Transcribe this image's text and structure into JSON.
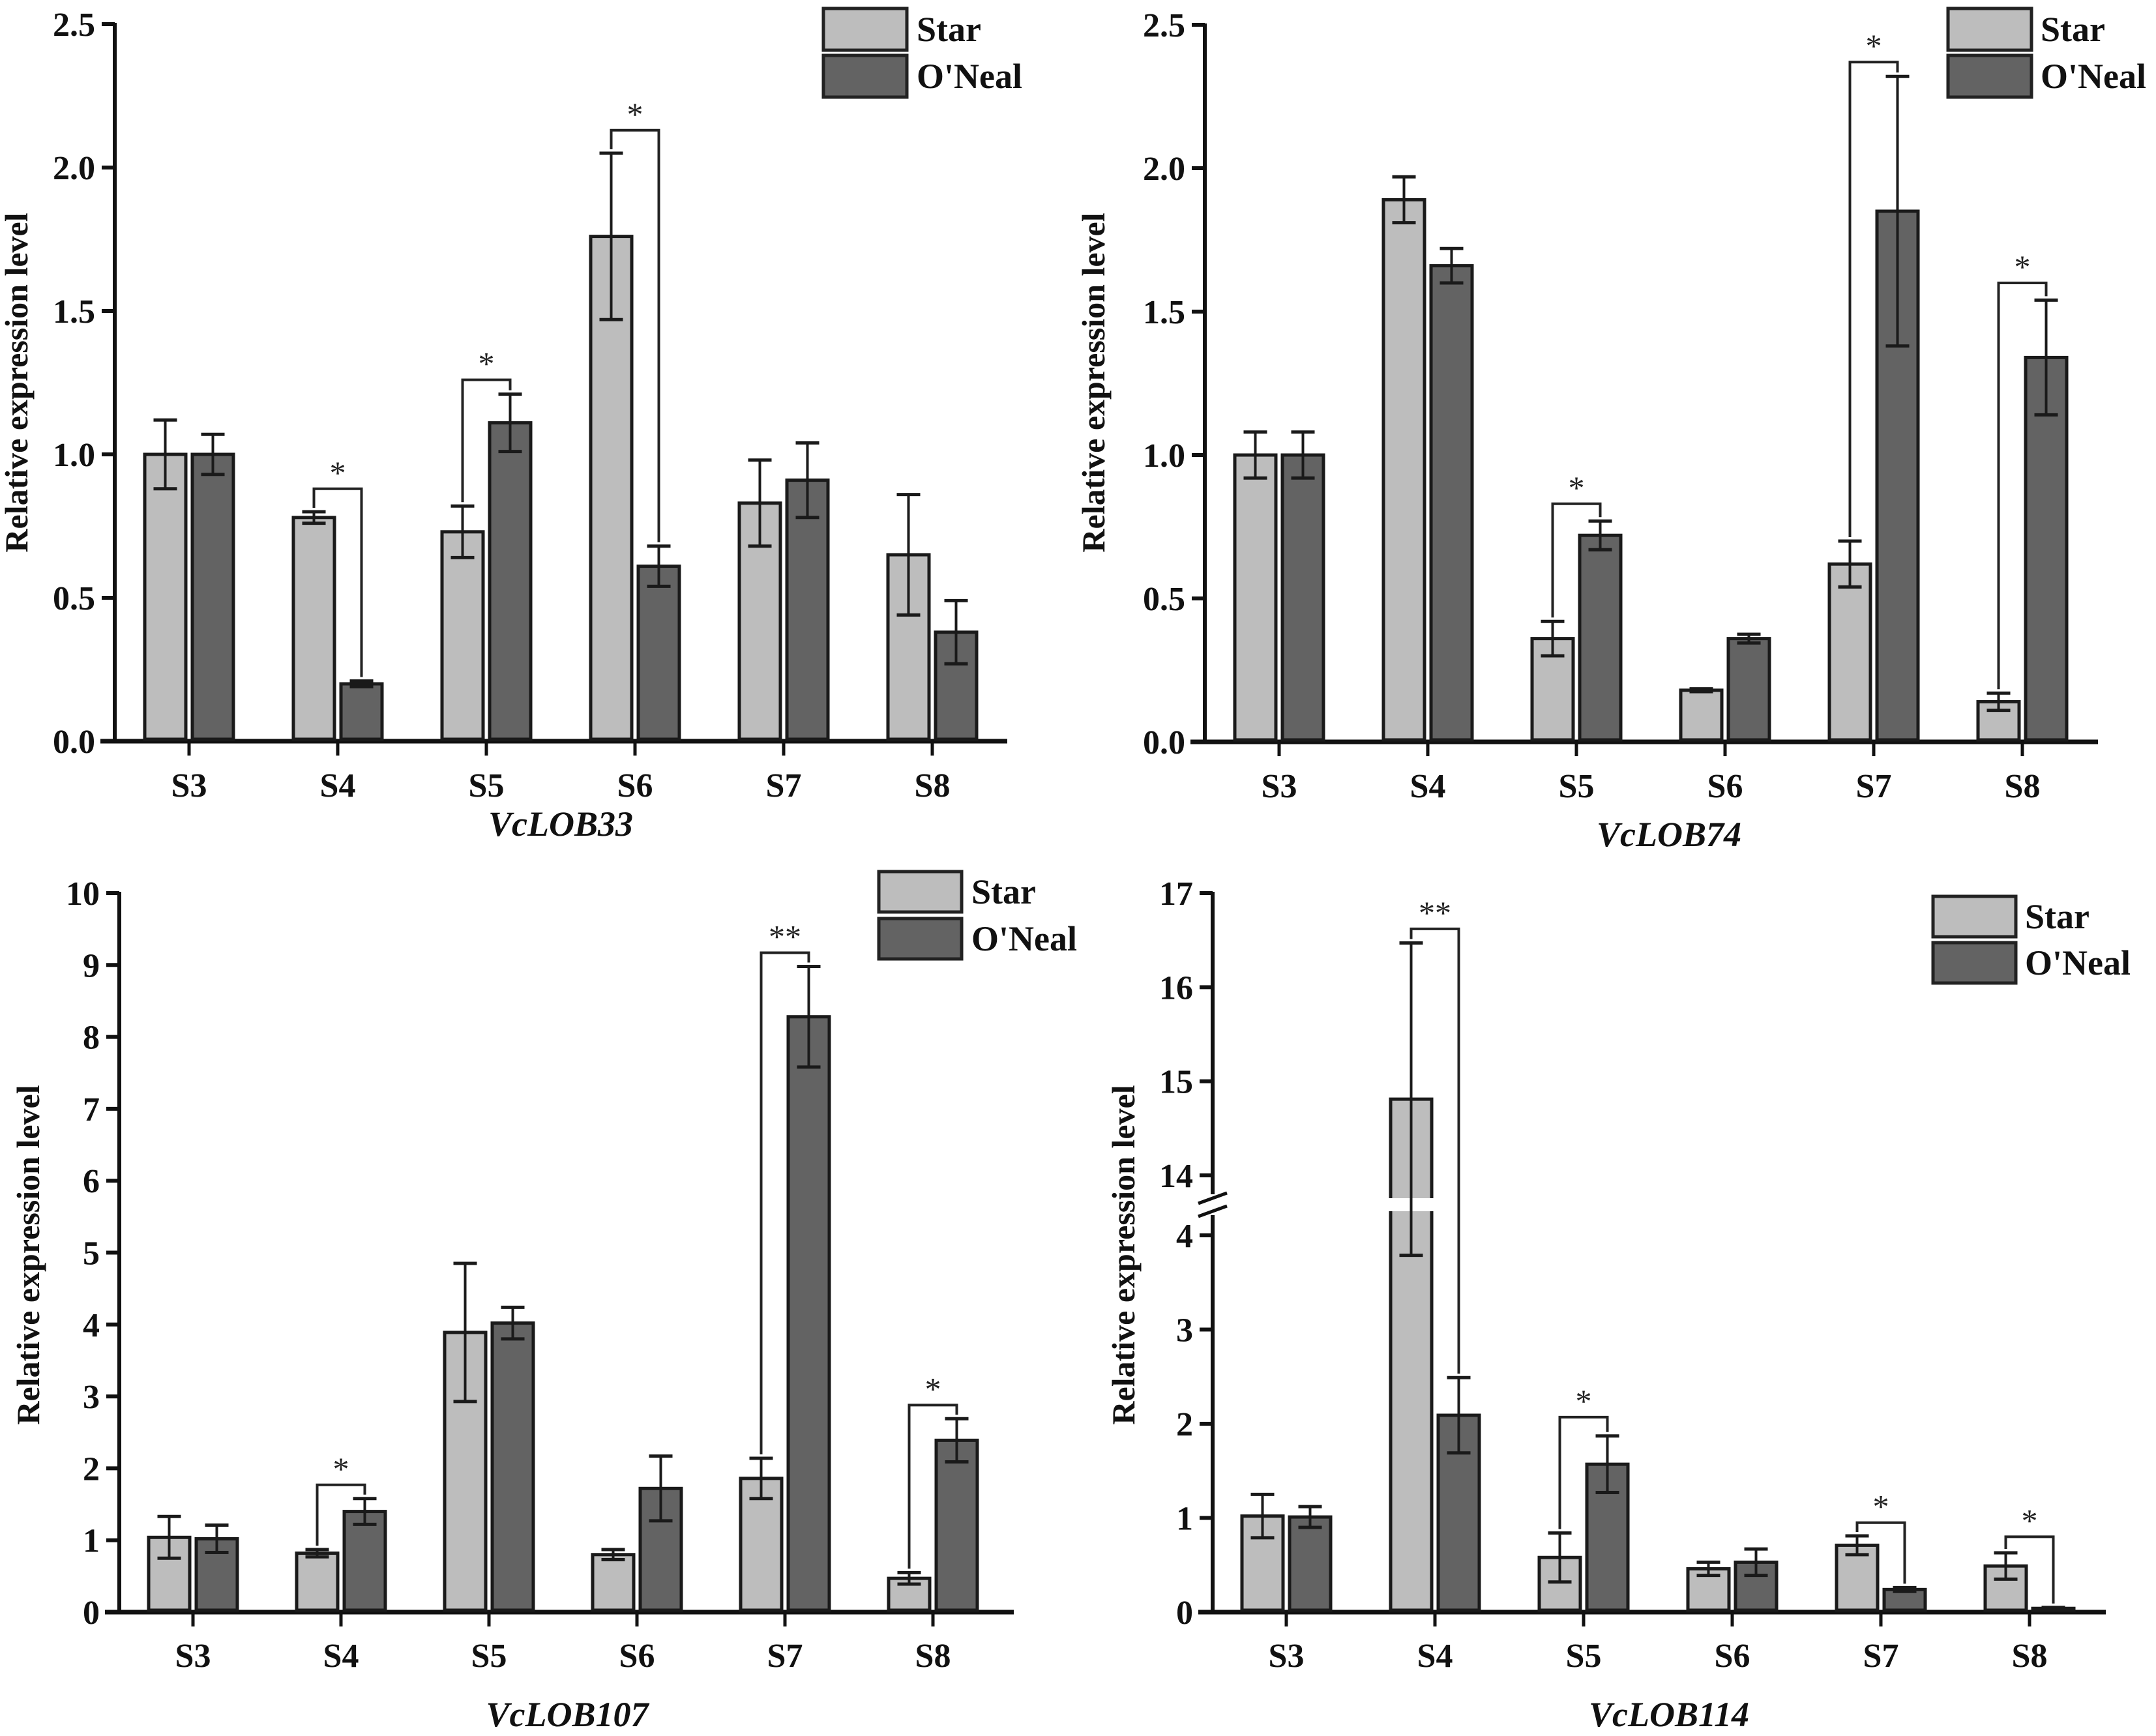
{
  "figure": {
    "legend_labels": [
      "Star",
      "O'Neal"
    ],
    "colors": {
      "Star": "#bdbdbd",
      "O'Neal": "#636363",
      "axis": "#111111"
    }
  },
  "chart_data": [
    {
      "type": "bar",
      "title": "VcLOB33",
      "xlabel": "VcLOB33",
      "ylabel": "Relative expression level",
      "categories": [
        "S3",
        "S4",
        "S5",
        "S6",
        "S7",
        "S8"
      ],
      "ylim": [
        0,
        2.5
      ],
      "yticks": [
        0.0,
        0.5,
        1.0,
        1.5,
        2.0,
        2.5
      ],
      "ytick_labels": [
        "0.0",
        "0.5",
        "1.0",
        "1.5",
        "2.0",
        "2.5"
      ],
      "legend": "top-right",
      "grid": false,
      "series": [
        {
          "name": "Star",
          "values": [
            1.0,
            0.78,
            0.73,
            1.76,
            0.83,
            0.65
          ],
          "errors": [
            0.12,
            0.02,
            0.09,
            0.29,
            0.15,
            0.21
          ]
        },
        {
          "name": "O'Neal",
          "values": [
            1.0,
            0.2,
            1.11,
            0.61,
            0.91,
            0.38
          ],
          "errors": [
            0.07,
            0.01,
            0.1,
            0.07,
            0.13,
            0.11
          ]
        }
      ],
      "significance": [
        {
          "category": "S4",
          "label": "*",
          "bracket_y": 0.88
        },
        {
          "category": "S5",
          "label": "*",
          "bracket_y": 1.26
        },
        {
          "category": "S6",
          "label": "*",
          "bracket_y": 2.13
        }
      ]
    },
    {
      "type": "bar",
      "title": "VcLOB74",
      "xlabel": "VcLOB74",
      "ylabel": "Relative expression level",
      "categories": [
        "S3",
        "S4",
        "S5",
        "S6",
        "S7",
        "S8"
      ],
      "ylim": [
        0,
        2.5
      ],
      "yticks": [
        0.0,
        0.5,
        1.0,
        1.5,
        2.0,
        2.5
      ],
      "ytick_labels": [
        "0.0",
        "0.5",
        "1.0",
        "1.5",
        "2.0",
        "2.5"
      ],
      "legend": "top-right",
      "grid": false,
      "series": [
        {
          "name": "Star",
          "values": [
            1.0,
            1.89,
            0.36,
            0.18,
            0.62,
            0.14
          ],
          "errors": [
            0.08,
            0.08,
            0.06,
            0.005,
            0.08,
            0.03
          ]
        },
        {
          "name": "O'Neal",
          "values": [
            1.0,
            1.66,
            0.72,
            0.36,
            1.85,
            1.34
          ],
          "errors": [
            0.08,
            0.06,
            0.05,
            0.015,
            0.47,
            0.2
          ]
        }
      ],
      "significance": [
        {
          "category": "S5",
          "label": "*",
          "bracket_y": 0.83
        },
        {
          "category": "S7",
          "label": "*",
          "bracket_y": 2.37
        },
        {
          "category": "S8",
          "label": "*",
          "bracket_y": 1.6
        }
      ]
    },
    {
      "type": "bar",
      "title": "VcLOB107",
      "xlabel": "VcLOB107",
      "ylabel": "Relative expression level",
      "categories": [
        "S3",
        "S4",
        "S5",
        "S6",
        "S7",
        "S8"
      ],
      "ylim": [
        0,
        10
      ],
      "yticks": [
        0,
        1,
        2,
        3,
        4,
        5,
        6,
        7,
        8,
        9,
        10
      ],
      "ytick_labels": [
        "0",
        "1",
        "2",
        "3",
        "4",
        "5",
        "6",
        "7",
        "8",
        "9",
        "10"
      ],
      "legend": "top-right",
      "grid": false,
      "series": [
        {
          "name": "Star",
          "values": [
            1.04,
            0.82,
            3.89,
            0.8,
            1.86,
            0.47
          ],
          "errors": [
            0.29,
            0.05,
            0.96,
            0.07,
            0.28,
            0.08
          ]
        },
        {
          "name": "O'Neal",
          "values": [
            1.02,
            1.4,
            4.02,
            1.72,
            8.28,
            2.39
          ],
          "errors": [
            0.19,
            0.18,
            0.22,
            0.45,
            0.7,
            0.3
          ]
        }
      ],
      "significance": [
        {
          "category": "S4",
          "label": "*",
          "bracket_y": 1.77
        },
        {
          "category": "S7",
          "label": "**",
          "bracket_y": 9.17
        },
        {
          "category": "S8",
          "label": "*",
          "bracket_y": 2.88
        }
      ]
    },
    {
      "type": "bar",
      "title": "VcLOB114",
      "xlabel": "VcLOB114",
      "ylabel": "Relative expression level",
      "categories": [
        "S3",
        "S4",
        "S5",
        "S6",
        "S7",
        "S8"
      ],
      "ylim": [
        0,
        17
      ],
      "axis_break": [
        4.25,
        13.75
      ],
      "yticks": [
        0,
        1,
        2,
        3,
        4,
        14,
        15,
        16,
        17
      ],
      "ytick_labels": [
        "0",
        "1",
        "2",
        "3",
        "4",
        "14",
        "15",
        "16",
        "17"
      ],
      "legend": "top-right",
      "grid": false,
      "series": [
        {
          "name": "Star",
          "values": [
            1.02,
            14.81,
            0.58,
            0.46,
            0.71,
            0.49
          ],
          "errors": [
            0.23,
            1.66,
            0.26,
            0.07,
            0.1,
            0.14
          ]
        },
        {
          "name": "O'Neal",
          "values": [
            1.01,
            2.09,
            1.57,
            0.53,
            0.24,
            0.04
          ],
          "errors": [
            0.11,
            0.4,
            0.3,
            0.14,
            0.02,
            0.01
          ]
        }
      ],
      "significance": [
        {
          "category": "S4",
          "label": "**",
          "bracket_y": 16.62
        },
        {
          "category": "S5",
          "label": "*",
          "bracket_y": 2.07
        },
        {
          "category": "S7",
          "label": "*",
          "bracket_y": 0.95
        },
        {
          "category": "S8",
          "label": "*",
          "bracket_y": 0.8
        }
      ]
    }
  ]
}
